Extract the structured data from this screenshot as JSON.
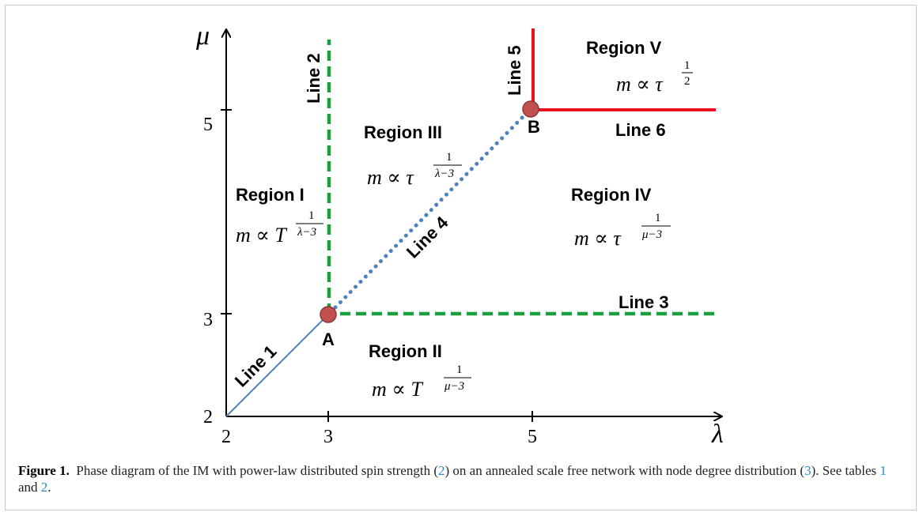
{
  "figure": {
    "axes": {
      "x_symbol": "λ",
      "y_symbol": "μ",
      "x_ticks": [
        "2",
        "3",
        "5"
      ],
      "y_ticks": [
        "2",
        "3",
        "5"
      ]
    },
    "points": [
      {
        "label": "A",
        "lambda": 3,
        "mu": 3,
        "color": "#c0504d"
      },
      {
        "label": "B",
        "lambda": 5,
        "mu": 5,
        "color": "#c0504d"
      }
    ],
    "lines": {
      "line1": "Line 1",
      "line2": "Line 2",
      "line3": "Line 3",
      "line4": "Line 4",
      "line5": "Line 5",
      "line6": "Line 6"
    },
    "line_colors": {
      "line1": "#4f81bd",
      "green_dashed": "#1a9e3e",
      "line4_dotted": "#4f81bd",
      "red": "#e8111d"
    },
    "regions": {
      "r1": {
        "name": "Region I",
        "formula_base": "m ∝ T",
        "exp_num": "1",
        "exp_den": "λ−3"
      },
      "r2": {
        "name": "Region II",
        "formula_base": "m ∝ T",
        "exp_num": "1",
        "exp_den": "μ−3"
      },
      "r3": {
        "name": "Region III",
        "formula_base": "m ∝ τ",
        "exp_num": "1",
        "exp_den": "λ−3"
      },
      "r4": {
        "name": "Region IV",
        "formula_base": "m ∝ τ",
        "exp_num": "1",
        "exp_den": "μ−3"
      },
      "r5": {
        "name": "Region V",
        "formula_base": "m ∝ τ",
        "exp_num": "1",
        "exp_den": "2"
      }
    }
  },
  "caption": {
    "label": "Figure 1.",
    "text_1": "Phase diagram of the IM with power-law distributed spin strength (",
    "ref_1": "2",
    "text_2": ") on an annealed scale free network with node degree distribution (",
    "ref_2": "3",
    "text_3": "). See tables ",
    "ref_3": "1",
    "text_4": " and ",
    "ref_4": "2",
    "text_5": "."
  }
}
